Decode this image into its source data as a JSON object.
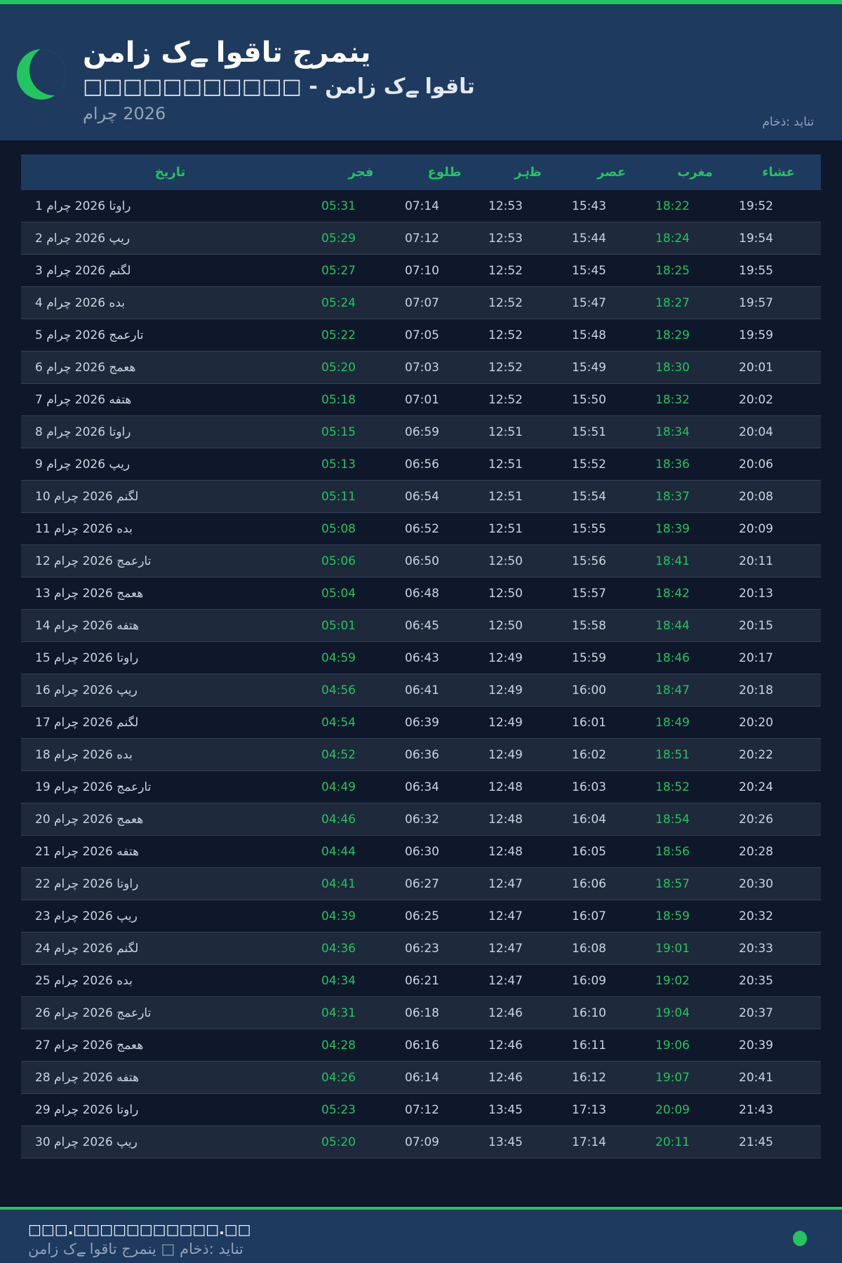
{
  "header": {
    "title": "نماز کے اوقات جرمنی",
    "subtitle": "□□□□□□□□□□□ - نماز کے اوقات",
    "month": "مارچ 2026",
    "source": "ماخذ: دیانت"
  },
  "colors": {
    "accent": "#22c55e",
    "header_bg": "#1e3a5f",
    "page_bg": "#0f172a",
    "alt_row": "#1e293b"
  },
  "table": {
    "columns": [
      "خیرات",
      "رجف",
      "عولط",
      "رہظ",
      "رصع",
      "برغم",
      "ءاشع"
    ],
    "rows": [
      [
        "1 مارچ 2026 اتوار",
        "05:31",
        "07:14",
        "12:53",
        "15:43",
        "18:22",
        "19:52"
      ],
      [
        "2 مارچ 2026 پیر",
        "05:29",
        "07:12",
        "12:53",
        "15:44",
        "18:24",
        "19:54"
      ],
      [
        "3 مارچ 2026 منگل",
        "05:27",
        "07:10",
        "12:52",
        "15:45",
        "18:25",
        "19:55"
      ],
      [
        "4 مارچ 2026 هدب",
        "05:24",
        "07:07",
        "12:52",
        "15:47",
        "18:27",
        "19:57"
      ],
      [
        "5 مارچ 2026 جمعرات",
        "05:22",
        "07:05",
        "12:52",
        "15:48",
        "18:29",
        "19:59"
      ],
      [
        "6 مارچ 2026 جمعه",
        "05:20",
        "07:03",
        "12:52",
        "15:49",
        "18:30",
        "20:01"
      ],
      [
        "7 مارچ 2026 هفته",
        "05:18",
        "07:01",
        "12:52",
        "15:50",
        "18:32",
        "20:02"
      ],
      [
        "8 مارچ 2026 اتوار",
        "05:15",
        "06:59",
        "12:51",
        "15:51",
        "18:34",
        "20:04"
      ],
      [
        "9 مارچ 2026 پیر",
        "05:13",
        "06:56",
        "12:51",
        "15:52",
        "18:36",
        "20:06"
      ],
      [
        "10 مارچ 2026 منگل",
        "05:11",
        "06:54",
        "12:51",
        "15:54",
        "18:37",
        "20:08"
      ],
      [
        "11 مارچ 2026 هدب",
        "05:08",
        "06:52",
        "12:51",
        "15:55",
        "18:39",
        "20:09"
      ],
      [
        "12 مارچ 2026 جمعرات",
        "05:06",
        "06:50",
        "12:50",
        "15:56",
        "18:41",
        "20:11"
      ],
      [
        "13 مارچ 2026 جمعه",
        "05:04",
        "06:48",
        "12:50",
        "15:57",
        "18:42",
        "20:13"
      ],
      [
        "14 مارچ 2026 هفته",
        "05:01",
        "06:45",
        "12:50",
        "15:58",
        "18:44",
        "20:15"
      ],
      [
        "15 مارچ 2026 اتوار",
        "04:59",
        "06:43",
        "12:49",
        "15:59",
        "18:46",
        "20:17"
      ],
      [
        "16 مارچ 2026 پیر",
        "04:56",
        "06:41",
        "12:49",
        "16:00",
        "18:47",
        "20:18"
      ],
      [
        "17 مارچ 2026 منگل",
        "04:54",
        "06:39",
        "12:49",
        "16:01",
        "18:49",
        "20:20"
      ],
      [
        "18 مارچ 2026 هدب",
        "04:52",
        "06:36",
        "12:49",
        "16:02",
        "18:51",
        "20:22"
      ],
      [
        "19 مارچ 2026 جمعرات",
        "04:49",
        "06:34",
        "12:48",
        "16:03",
        "18:52",
        "20:24"
      ],
      [
        "20 مارچ 2026 جمعه",
        "04:46",
        "06:32",
        "12:48",
        "16:04",
        "18:54",
        "20:26"
      ],
      [
        "21 مارچ 2026 هفته",
        "04:44",
        "06:30",
        "12:48",
        "16:05",
        "18:56",
        "20:28"
      ],
      [
        "22 مارچ 2026 اتوار",
        "04:41",
        "06:27",
        "12:47",
        "16:06",
        "18:57",
        "20:30"
      ],
      [
        "23 مارچ 2026 پیر",
        "04:39",
        "06:25",
        "12:47",
        "16:07",
        "18:59",
        "20:32"
      ],
      [
        "24 مارچ 2026 منگل",
        "04:36",
        "06:23",
        "12:47",
        "16:08",
        "19:01",
        "20:33"
      ],
      [
        "25 مارچ 2026 هدب",
        "04:34",
        "06:21",
        "12:47",
        "16:09",
        "19:02",
        "20:35"
      ],
      [
        "26 مارچ 2026 جمعرات",
        "04:31",
        "06:18",
        "12:46",
        "16:10",
        "19:04",
        "20:37"
      ],
      [
        "27 مارچ 2026 جمعه",
        "04:28",
        "06:16",
        "12:46",
        "16:11",
        "19:06",
        "20:39"
      ],
      [
        "28 مارچ 2026 هفته",
        "04:26",
        "06:14",
        "12:46",
        "16:12",
        "19:07",
        "20:41"
      ],
      [
        "29 مارچ 2026 اتوار",
        "05:23",
        "07:12",
        "13:45",
        "17:13",
        "20:09",
        "21:43"
      ],
      [
        "30 مارچ 2026 پیر",
        "05:20",
        "07:09",
        "13:45",
        "17:14",
        "20:11",
        "21:45"
      ]
    ]
  },
  "footer": {
    "site": "□□□.□□□□□□□□□□□.□□",
    "text": "نماز کے اوقات جرمنی □ ماخذ: دیانت"
  }
}
